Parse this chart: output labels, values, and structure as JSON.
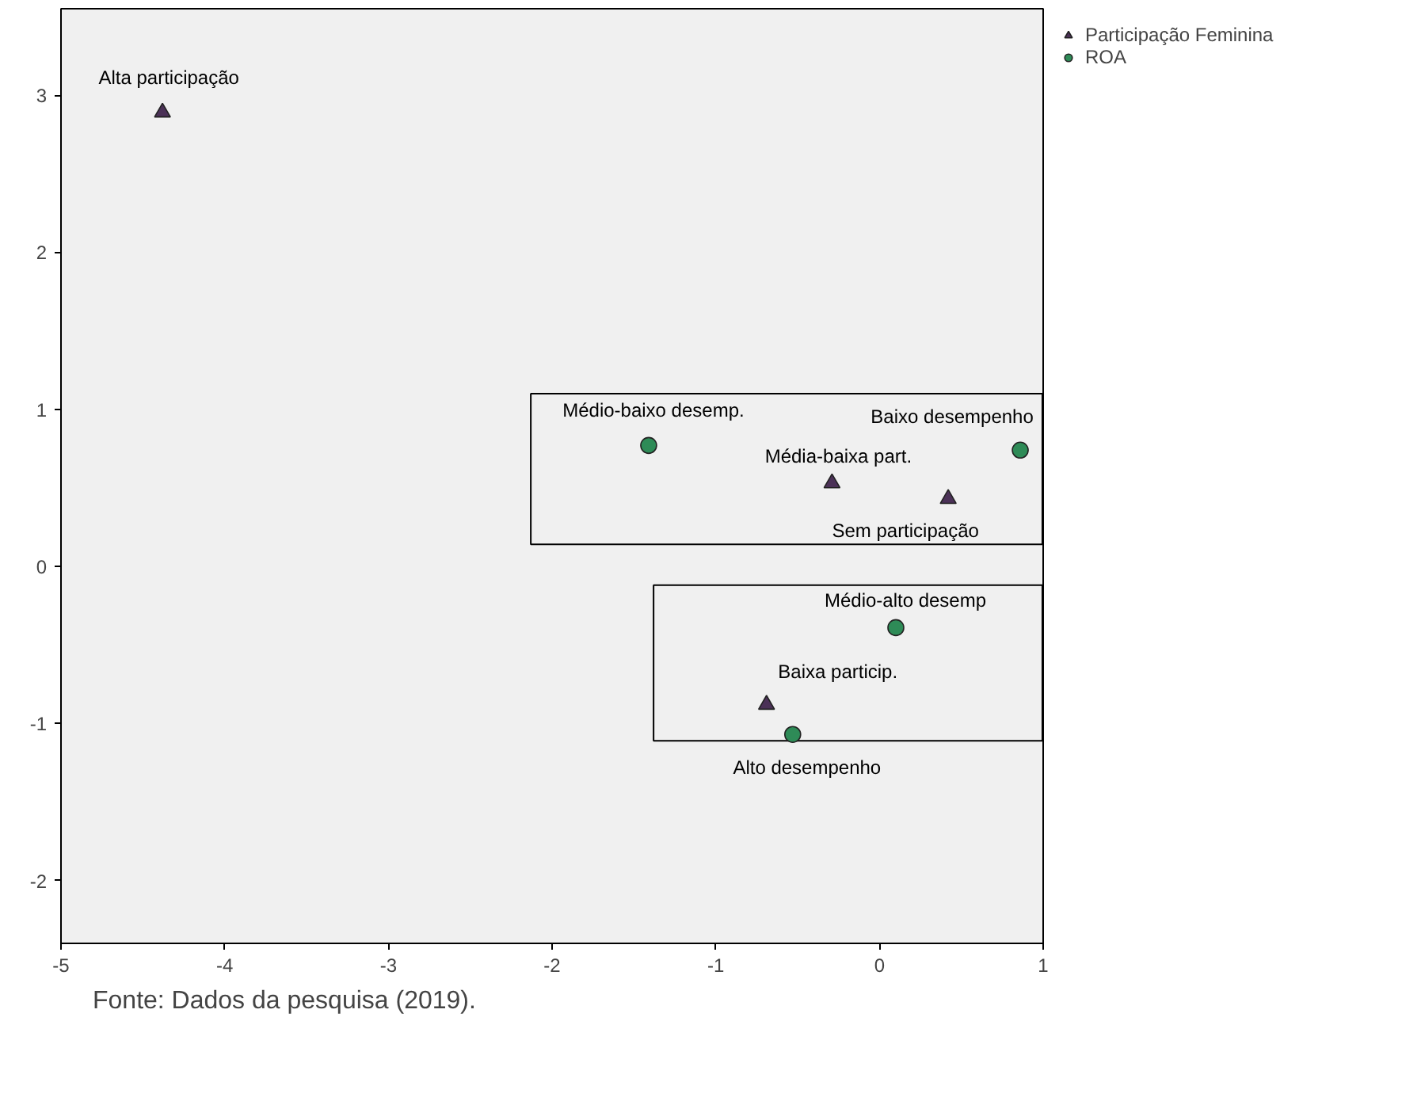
{
  "chart_data": {
    "type": "scatter",
    "xlim": [
      -5,
      1
    ],
    "ylim": [
      -2.4,
      3.55
    ],
    "xticks": [
      -5,
      -4,
      -3,
      -2,
      -1,
      0,
      1
    ],
    "yticks": [
      -2,
      -1,
      0,
      1,
      2,
      3
    ],
    "grid": false,
    "legend": "top right",
    "series": [
      {
        "name": "Participação Feminina",
        "color": "#4b3157",
        "marker": "triangle",
        "x": [
          -4.38,
          -0.29,
          0.42,
          -0.69
        ],
        "values": [
          2.89,
          0.53,
          0.43,
          -0.88
        ]
      },
      {
        "name": "ROA",
        "color": "#2e8b57",
        "marker": "circle",
        "x": [
          -1.41,
          0.86,
          0.1,
          -0.53
        ],
        "values": [
          0.77,
          0.74,
          -0.39,
          -1.07
        ]
      }
    ],
    "annotations": [
      {
        "text": "Alta participação",
        "x": -4.38,
        "y": 2.89
      },
      {
        "text": "Médio-baixo desemp.",
        "x": -1.41,
        "y": 0.77
      },
      {
        "text": "Baixo desempenho",
        "x": 0.86,
        "y": 0.74
      },
      {
        "text": "Média-baixa part.",
        "x": -0.29,
        "y": 0.53
      },
      {
        "text": "Sem participação",
        "x": 0.42,
        "y": 0.43
      },
      {
        "text": "Médio-alto desemp",
        "x": 0.1,
        "y": -0.39
      },
      {
        "text": "Baixa particip.",
        "x": -0.69,
        "y": -0.88
      },
      {
        "text": "Alto desempenho",
        "x": -0.53,
        "y": -1.07
      },
      "Fonte: Dados da pesquisa (2019)."
    ]
  }
}
